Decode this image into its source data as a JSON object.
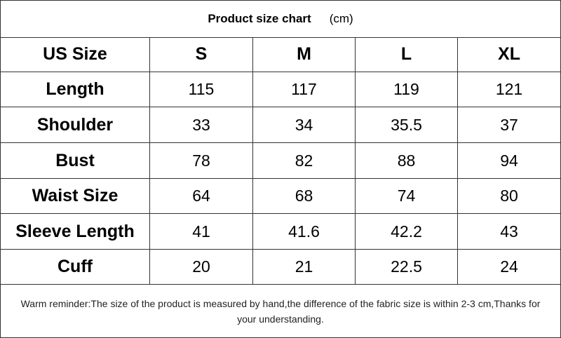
{
  "title": "Product size chart",
  "unit": "(cm)",
  "table": {
    "header": [
      "US Size",
      "S",
      "M",
      "L",
      "XL"
    ],
    "rows": [
      [
        "Length",
        115,
        117,
        119,
        121
      ],
      [
        "Shoulder",
        33,
        34,
        35.5,
        37
      ],
      [
        "Bust",
        78,
        82,
        88,
        94
      ],
      [
        "Waist Size",
        64,
        68,
        74,
        80
      ],
      [
        "Sleeve Length",
        41,
        41.6,
        42.2,
        43
      ],
      [
        "Cuff",
        20,
        21,
        22.5,
        24
      ]
    ]
  },
  "note": "Warm reminder:The size of the product is measured by hand,the difference of the fabric size is within 2-3 cm,Thanks for your understanding."
}
